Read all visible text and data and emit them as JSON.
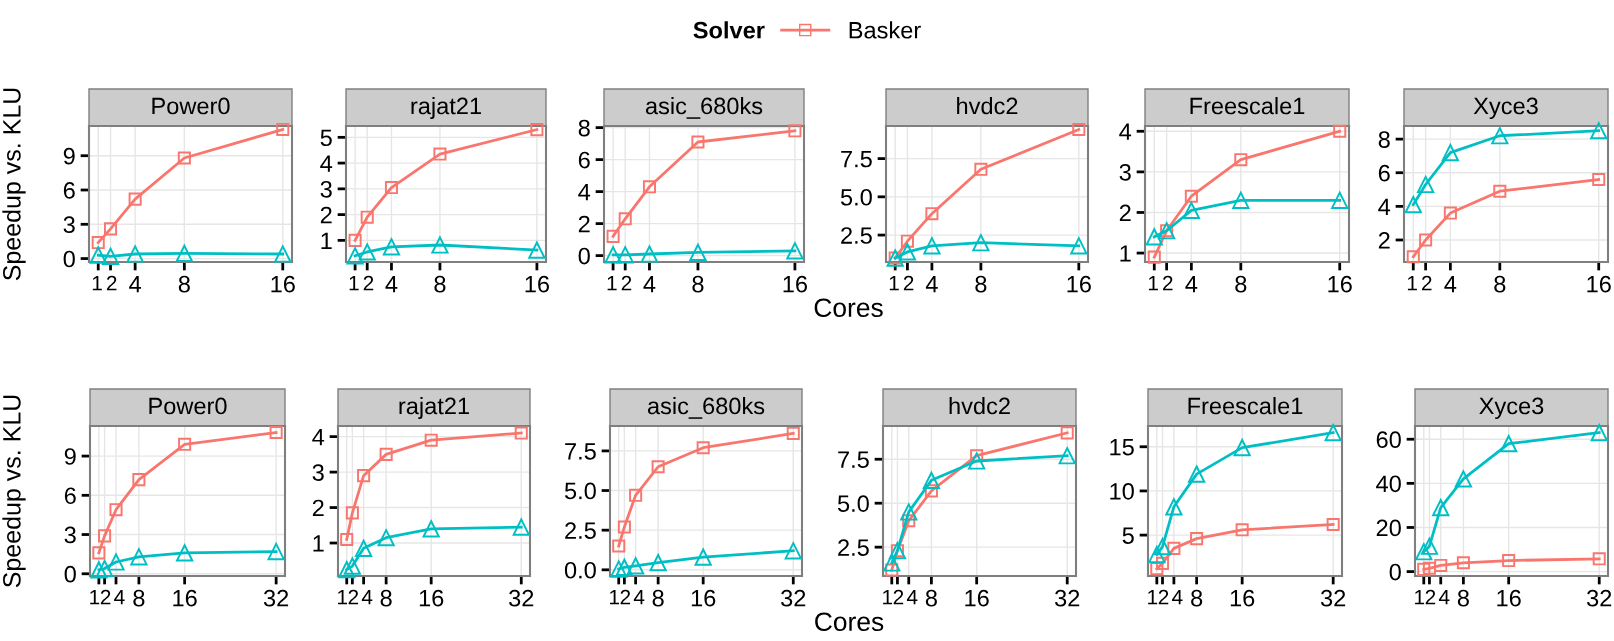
{
  "chart_data": [
    {
      "type": "line",
      "title": "Power0",
      "ylabel": "Speedup vs. KLU",
      "legend": "top",
      "legend_title": "Solver",
      "grid": true,
      "x": [
        1,
        2,
        4,
        8,
        16
      ],
      "xlim": [
        0.25,
        16.75
      ],
      "xticks": [
        1,
        2,
        4,
        8,
        16
      ],
      "ylim": [
        -0.3,
        11.6
      ],
      "yticks": [
        0,
        3,
        6,
        9
      ],
      "series": [
        {
          "name": "Basker",
          "color": "#f8766d",
          "marker": "square",
          "values": [
            1.4,
            2.6,
            5.2,
            8.8,
            11.3
          ]
        },
        {
          "color": "#00bfc4",
          "marker": "triangle",
          "values": [
            0.3,
            0.2,
            0.4,
            0.45,
            0.4
          ]
        }
      ]
    },
    {
      "type": "line",
      "title": "rajat21",
      "grid": true,
      "x": [
        1,
        2,
        4,
        8,
        16
      ],
      "xlim": [
        0.25,
        16.75
      ],
      "xticks": [
        1,
        2,
        4,
        8,
        16
      ],
      "ylim": [
        0.16,
        5.44
      ],
      "yticks": [
        1,
        2,
        3,
        4,
        5
      ],
      "series": [
        {
          "name": "Basker",
          "color": "#f8766d",
          "marker": "square",
          "values": [
            1.0,
            1.9,
            3.05,
            4.35,
            5.3
          ]
        },
        {
          "color": "#00bfc4",
          "marker": "triangle",
          "values": [
            0.4,
            0.55,
            0.75,
            0.82,
            0.62
          ]
        }
      ]
    },
    {
      "type": "line",
      "title": "asic_680ks",
      "xlabel": "Cores",
      "grid": true,
      "x": [
        1,
        2,
        4,
        8,
        16
      ],
      "xlim": [
        0.25,
        16.75
      ],
      "xticks": [
        1,
        2,
        4,
        8,
        16
      ],
      "ylim": [
        -0.4,
        8.1
      ],
      "yticks": [
        0,
        2,
        4,
        6,
        8
      ],
      "series": [
        {
          "name": "Basker",
          "color": "#f8766d",
          "marker": "square",
          "values": [
            1.2,
            2.3,
            4.3,
            7.1,
            7.8
          ]
        },
        {
          "color": "#00bfc4",
          "marker": "triangle",
          "values": [
            0.05,
            0.05,
            0.1,
            0.2,
            0.3
          ]
        }
      ]
    },
    {
      "type": "line",
      "title": "hvdc2",
      "grid": true,
      "x": [
        1,
        2,
        4,
        8,
        16
      ],
      "xlim": [
        0.25,
        16.75
      ],
      "xticks": [
        1,
        2,
        4,
        8,
        16
      ],
      "ylim": [
        0.74,
        9.63
      ],
      "yticks": [
        {
          "value": 2.5,
          "label": "2.5"
        },
        {
          "value": 5,
          "label": "5.0"
        },
        {
          "value": 7.5,
          "label": "7.5"
        }
      ],
      "series": [
        {
          "name": "Basker",
          "color": "#f8766d",
          "marker": "square",
          "values": [
            1.0,
            2.1,
            3.9,
            6.8,
            9.4
          ]
        },
        {
          "color": "#00bfc4",
          "marker": "triangle",
          "values": [
            1.0,
            1.4,
            1.8,
            2.0,
            1.8
          ]
        }
      ]
    },
    {
      "type": "line",
      "title": "Freescale1",
      "grid": true,
      "x": [
        1,
        2,
        4,
        8,
        16
      ],
      "xlim": [
        0.25,
        16.75
      ],
      "xticks": [
        1,
        2,
        4,
        8,
        16
      ],
      "ylim": [
        0.78,
        4.13
      ],
      "yticks": [
        1,
        2,
        3,
        4
      ],
      "series": [
        {
          "name": "Basker",
          "color": "#f8766d",
          "marker": "square",
          "values": [
            0.9,
            1.55,
            2.4,
            3.3,
            4.0
          ]
        },
        {
          "color": "#00bfc4",
          "marker": "triangle",
          "values": [
            1.4,
            1.55,
            2.05,
            2.3,
            2.3
          ]
        }
      ]
    },
    {
      "type": "line",
      "title": "Xyce3",
      "grid": true,
      "x": [
        1,
        2,
        4,
        8,
        16
      ],
      "xlim": [
        0.25,
        16.75
      ],
      "xticks": [
        1,
        2,
        4,
        8,
        16
      ],
      "ylim": [
        0.69,
        8.78
      ],
      "yticks": [
        2,
        4,
        6,
        8
      ],
      "series": [
        {
          "name": "Basker",
          "color": "#f8766d",
          "marker": "square",
          "values": [
            1.0,
            2.0,
            3.6,
            4.9,
            5.6
          ]
        },
        {
          "color": "#00bfc4",
          "marker": "triangle",
          "values": [
            4.1,
            5.3,
            7.2,
            8.2,
            8.5
          ]
        }
      ]
    },
    {
      "type": "line",
      "title": "Power0",
      "ylabel": "Speedup vs. KLU",
      "grid": true,
      "x": [
        1,
        2,
        4,
        8,
        16,
        32
      ],
      "xlim": [
        -0.55,
        33.55
      ],
      "xticks": [
        1,
        2,
        4,
        8,
        16,
        32
      ],
      "ylim": [
        -0.17,
        11.3
      ],
      "yticks": [
        0,
        3,
        6,
        9
      ],
      "series": [
        {
          "name": "Basker",
          "color": "#f8766d",
          "marker": "square",
          "values": [
            1.6,
            2.9,
            4.9,
            7.2,
            9.9,
            10.8
          ]
        },
        {
          "color": "#00bfc4",
          "marker": "triangle",
          "values": [
            0.3,
            0.4,
            0.9,
            1.3,
            1.6,
            1.7
          ]
        }
      ]
    },
    {
      "type": "line",
      "title": "rajat21",
      "grid": true,
      "x": [
        1,
        2,
        4,
        8,
        16,
        32
      ],
      "xlim": [
        -0.55,
        33.55
      ],
      "xticks": [
        1,
        2,
        4,
        8,
        16,
        32
      ],
      "ylim": [
        0.07,
        4.3
      ],
      "yticks": [
        1,
        2,
        3,
        4
      ],
      "series": [
        {
          "name": "Basker",
          "color": "#f8766d",
          "marker": "square",
          "values": [
            1.1,
            1.85,
            2.9,
            3.5,
            3.9,
            4.1
          ]
        },
        {
          "color": "#00bfc4",
          "marker": "triangle",
          "values": [
            0.25,
            0.35,
            0.85,
            1.15,
            1.4,
            1.45
          ]
        }
      ]
    },
    {
      "type": "line",
      "title": "asic_680ks",
      "xlabel": "Cores",
      "grid": true,
      "x": [
        1,
        2,
        4,
        8,
        16,
        32
      ],
      "xlim": [
        -0.55,
        33.55
      ],
      "xticks": [
        1,
        2,
        4,
        8,
        16,
        32
      ],
      "ylim": [
        -0.39,
        9.07
      ],
      "yticks": [
        {
          "value": 0,
          "label": "0.0"
        },
        {
          "value": 2.5,
          "label": "2.5"
        },
        {
          "value": 5,
          "label": "5.0"
        },
        {
          "value": 7.5,
          "label": "7.5"
        }
      ],
      "series": [
        {
          "name": "Basker",
          "color": "#f8766d",
          "marker": "square",
          "values": [
            1.5,
            2.7,
            4.7,
            6.5,
            7.7,
            8.6
          ]
        },
        {
          "color": "#00bfc4",
          "marker": "triangle",
          "values": [
            0.05,
            0.15,
            0.25,
            0.45,
            0.8,
            1.2
          ]
        }
      ]
    },
    {
      "type": "line",
      "title": "hvdc2",
      "grid": true,
      "x": [
        1,
        2,
        4,
        8,
        16,
        32
      ],
      "xlim": [
        -0.55,
        33.55
      ],
      "xticks": [
        1,
        2,
        4,
        8,
        16,
        32
      ],
      "ylim": [
        0.86,
        9.39
      ],
      "yticks": [
        {
          "value": 2.5,
          "label": "2.5"
        },
        {
          "value": 5,
          "label": "5.0"
        },
        {
          "value": 7.5,
          "label": "7.5"
        }
      ],
      "series": [
        {
          "name": "Basker",
          "color": "#f8766d",
          "marker": "square",
          "values": [
            1.2,
            2.3,
            4.0,
            5.7,
            7.7,
            9.0
          ]
        },
        {
          "color": "#00bfc4",
          "marker": "triangle",
          "values": [
            1.6,
            2.3,
            4.5,
            6.3,
            7.4,
            7.7
          ]
        }
      ]
    },
    {
      "type": "line",
      "title": "Freescale1",
      "grid": true,
      "x": [
        1,
        2,
        4,
        8,
        16,
        32
      ],
      "xlim": [
        -0.55,
        33.55
      ],
      "xticks": [
        1,
        2,
        4,
        8,
        16,
        32
      ],
      "ylim": [
        0.37,
        17.35
      ],
      "yticks": [
        5,
        10,
        15
      ],
      "series": [
        {
          "name": "Basker",
          "color": "#f8766d",
          "marker": "square",
          "values": [
            1.2,
            1.8,
            3.5,
            4.6,
            5.6,
            6.2
          ]
        },
        {
          "color": "#00bfc4",
          "marker": "triangle",
          "values": [
            2.8,
            3.7,
            8.2,
            11.9,
            14.9,
            16.6
          ]
        }
      ]
    },
    {
      "type": "line",
      "title": "Xyce3",
      "grid": true,
      "x": [
        1,
        2,
        4,
        8,
        16,
        32
      ],
      "xlim": [
        -0.55,
        33.55
      ],
      "xticks": [
        1,
        2,
        4,
        8,
        16,
        32
      ],
      "ylim": [
        -2,
        66
      ],
      "yticks": [
        0,
        20,
        40,
        60
      ],
      "series": [
        {
          "name": "Basker",
          "color": "#f8766d",
          "marker": "square",
          "values": [
            1.0,
            1.5,
            2.8,
            4.0,
            5.0,
            5.8
          ]
        },
        {
          "color": "#00bfc4",
          "marker": "triangle",
          "values": [
            9.0,
            11.5,
            29,
            42,
            58,
            63
          ]
        }
      ]
    }
  ]
}
